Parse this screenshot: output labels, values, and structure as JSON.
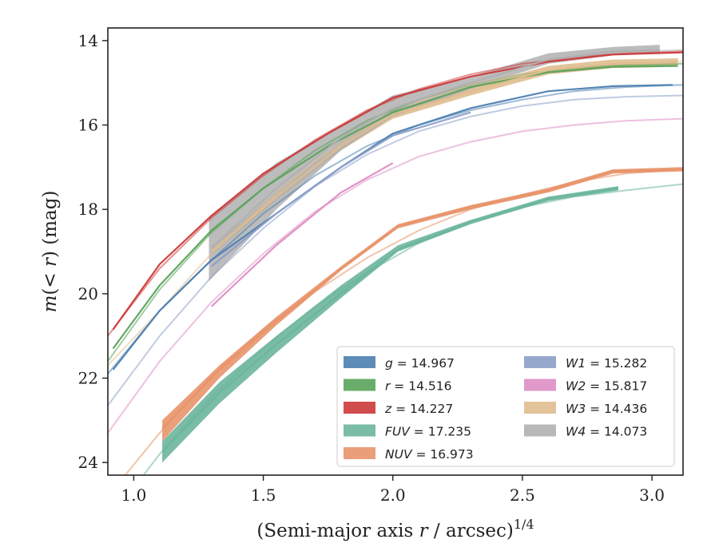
{
  "chart_data": {
    "type": "line",
    "xlabel": "(Semi-major axis r / arcsec)^1/4",
    "ylabel": "m(<r) (mag)",
    "xlim": [
      0.9,
      3.12
    ],
    "ylim": [
      24.3,
      13.7
    ],
    "y_inverted": true,
    "x_ticks": [
      "1.0",
      "1.5",
      "2.0",
      "2.5",
      "3.0"
    ],
    "x_tick_values": [
      1.0,
      1.5,
      2.0,
      2.5,
      3.0
    ],
    "y_ticks": [
      "14",
      "16",
      "18",
      "20",
      "22",
      "24"
    ],
    "y_tick_values": [
      14,
      16,
      18,
      20,
      22,
      24
    ],
    "grid": false,
    "legend_position": "lower-right",
    "series": [
      {
        "name": "g = 14.967",
        "band": "g",
        "value": "14.967",
        "color": "#4c7fb0",
        "faint": [
          [
            0.9,
            21.9
          ],
          [
            1.1,
            20.4
          ],
          [
            1.3,
            19.2
          ],
          [
            1.5,
            18.1
          ],
          [
            1.7,
            17.2
          ],
          [
            1.9,
            16.5
          ],
          [
            2.1,
            16.0
          ],
          [
            2.3,
            15.65
          ],
          [
            2.5,
            15.4
          ],
          [
            2.7,
            15.2
          ],
          [
            2.9,
            15.1
          ],
          [
            3.12,
            15.05
          ]
        ],
        "main": [
          [
            0.92,
            21.8
          ],
          [
            1.1,
            20.4
          ],
          [
            1.3,
            19.2
          ],
          [
            1.55,
            18.1
          ],
          [
            1.8,
            17.0
          ],
          [
            2.0,
            16.2
          ],
          [
            2.3,
            15.6
          ],
          [
            2.6,
            15.2
          ],
          [
            2.85,
            15.08
          ],
          [
            3.08,
            15.05
          ]
        ],
        "band_pts": []
      },
      {
        "name": "r = 14.516",
        "band": "r",
        "value": "14.516",
        "color": "#5aa35a",
        "faint": [
          [
            0.9,
            21.6
          ],
          [
            1.1,
            19.9
          ],
          [
            1.3,
            18.55
          ],
          [
            1.5,
            17.5
          ],
          [
            1.7,
            16.6
          ],
          [
            1.9,
            15.9
          ],
          [
            2.1,
            15.4
          ],
          [
            2.3,
            15.05
          ],
          [
            2.5,
            14.8
          ],
          [
            2.7,
            14.65
          ],
          [
            2.9,
            14.58
          ],
          [
            3.12,
            14.55
          ]
        ],
        "main": [
          [
            0.92,
            21.3
          ],
          [
            1.1,
            19.8
          ],
          [
            1.3,
            18.5
          ],
          [
            1.5,
            17.5
          ],
          [
            1.75,
            16.5
          ],
          [
            2.0,
            15.7
          ],
          [
            2.3,
            15.1
          ],
          [
            2.6,
            14.75
          ],
          [
            2.85,
            14.62
          ],
          [
            3.1,
            14.6
          ]
        ],
        "band_pts": []
      },
      {
        "name": "z = 14.227",
        "band": "z",
        "value": "14.227",
        "color": "#cc3a3a",
        "faint": [
          [
            0.9,
            21.0
          ],
          [
            1.1,
            19.4
          ],
          [
            1.3,
            18.2
          ],
          [
            1.5,
            17.2
          ],
          [
            1.7,
            16.35
          ],
          [
            1.9,
            15.65
          ],
          [
            2.1,
            15.15
          ],
          [
            2.3,
            14.8
          ],
          [
            2.5,
            14.55
          ],
          [
            2.7,
            14.4
          ],
          [
            2.9,
            14.3
          ],
          [
            3.12,
            14.25
          ]
        ],
        "main": [
          [
            0.92,
            20.85
          ],
          [
            1.1,
            19.3
          ],
          [
            1.3,
            18.15
          ],
          [
            1.5,
            17.15
          ],
          [
            1.75,
            16.2
          ],
          [
            2.0,
            15.35
          ],
          [
            2.3,
            14.85
          ],
          [
            2.6,
            14.5
          ],
          [
            2.85,
            14.33
          ],
          [
            3.12,
            14.28
          ]
        ],
        "band_pts": []
      },
      {
        "name": "FUV = 17.235",
        "band": "FUV",
        "value": "17.235",
        "color": "#6bb59c",
        "faint": [
          [
            0.9,
            25.4
          ],
          [
            1.1,
            23.8
          ],
          [
            1.3,
            22.45
          ],
          [
            1.5,
            21.3
          ],
          [
            1.7,
            20.3
          ],
          [
            1.9,
            19.5
          ],
          [
            2.1,
            18.8
          ],
          [
            2.3,
            18.3
          ],
          [
            2.5,
            17.95
          ],
          [
            2.7,
            17.7
          ],
          [
            2.9,
            17.55
          ],
          [
            3.12,
            17.4
          ]
        ],
        "main": [
          [
            1.11,
            23.75
          ],
          [
            1.33,
            22.35
          ],
          [
            1.55,
            21.2
          ],
          [
            1.8,
            20.0
          ],
          [
            2.02,
            18.95
          ],
          [
            2.3,
            18.3
          ],
          [
            2.6,
            17.75
          ],
          [
            2.87,
            17.5
          ]
        ],
        "band_pts": [
          [
            1.11,
            23.5,
            24.0
          ],
          [
            1.33,
            22.1,
            22.6
          ],
          [
            1.55,
            21.0,
            21.4
          ],
          [
            1.8,
            19.8,
            20.1
          ],
          [
            2.02,
            18.85,
            19.0
          ],
          [
            2.3,
            18.25,
            18.35
          ],
          [
            2.6,
            17.7,
            17.8
          ],
          [
            2.87,
            17.45,
            17.55
          ]
        ]
      },
      {
        "name": "NUV = 16.973",
        "band": "NUV",
        "value": "16.973",
        "color": "#e8936a",
        "faint": [
          [
            0.9,
            24.8
          ],
          [
            1.1,
            23.3
          ],
          [
            1.3,
            21.95
          ],
          [
            1.5,
            20.85
          ],
          [
            1.7,
            19.95
          ],
          [
            1.9,
            19.15
          ],
          [
            2.1,
            18.5
          ],
          [
            2.3,
            18.0
          ],
          [
            2.5,
            17.65
          ],
          [
            2.7,
            17.35
          ],
          [
            2.9,
            17.15
          ],
          [
            3.12,
            17.05
          ]
        ],
        "main": [
          [
            1.11,
            23.2
          ],
          [
            1.33,
            21.8
          ],
          [
            1.55,
            20.65
          ],
          [
            1.8,
            19.4
          ],
          [
            2.02,
            18.4
          ],
          [
            2.3,
            17.95
          ],
          [
            2.6,
            17.55
          ],
          [
            2.85,
            17.1
          ],
          [
            3.12,
            17.05
          ]
        ],
        "band_pts": [
          [
            1.11,
            23.0,
            23.5
          ],
          [
            1.33,
            21.7,
            22.0
          ],
          [
            1.55,
            20.55,
            20.75
          ],
          [
            1.8,
            19.35,
            19.45
          ],
          [
            2.02,
            18.35,
            18.45
          ],
          [
            2.3,
            17.9,
            18.0
          ],
          [
            2.6,
            17.5,
            17.6
          ],
          [
            2.85,
            17.05,
            17.15
          ],
          [
            3.12,
            17.0,
            17.1
          ]
        ]
      },
      {
        "name": "W1 = 15.282",
        "band": "W1",
        "value": "15.282",
        "color": "#8c9fc8",
        "faint": [
          [
            0.9,
            22.65
          ],
          [
            1.1,
            21.0
          ],
          [
            1.3,
            19.6
          ],
          [
            1.5,
            18.45
          ],
          [
            1.7,
            17.45
          ],
          [
            1.9,
            16.7
          ],
          [
            2.1,
            16.15
          ],
          [
            2.3,
            15.8
          ],
          [
            2.5,
            15.55
          ],
          [
            2.7,
            15.4
          ],
          [
            2.9,
            15.33
          ],
          [
            3.12,
            15.3
          ]
        ],
        "main": [
          [
            1.3,
            19.35
          ],
          [
            1.55,
            18.1
          ],
          [
            1.8,
            17.0
          ],
          [
            2.0,
            16.25
          ],
          [
            2.3,
            15.7
          ]
        ],
        "band_pts": []
      },
      {
        "name": "W2 = 15.817",
        "band": "W2",
        "value": "15.817",
        "color": "#dd8ec4",
        "faint": [
          [
            0.9,
            23.3
          ],
          [
            1.1,
            21.6
          ],
          [
            1.3,
            20.2
          ],
          [
            1.5,
            19.05
          ],
          [
            1.7,
            18.05
          ],
          [
            1.9,
            17.3
          ],
          [
            2.1,
            16.75
          ],
          [
            2.3,
            16.4
          ],
          [
            2.5,
            16.15
          ],
          [
            2.7,
            16.0
          ],
          [
            2.9,
            15.9
          ],
          [
            3.12,
            15.85
          ]
        ],
        "main": [
          [
            1.3,
            20.3
          ],
          [
            1.55,
            18.85
          ],
          [
            1.8,
            17.6
          ],
          [
            2.0,
            16.9
          ]
        ],
        "band_pts": []
      },
      {
        "name": "W3 = 14.436",
        "band": "W3",
        "value": "14.436",
        "color": "#e0bd8f",
        "faint": [
          [
            0.9,
            21.7
          ],
          [
            1.1,
            20.4
          ],
          [
            1.3,
            19.05
          ],
          [
            1.5,
            17.9
          ],
          [
            1.7,
            16.85
          ],
          [
            1.9,
            16.05
          ],
          [
            2.1,
            15.45
          ],
          [
            2.3,
            15.05
          ],
          [
            2.5,
            14.8
          ],
          [
            2.7,
            14.62
          ],
          [
            2.9,
            14.52
          ],
          [
            3.12,
            14.5
          ]
        ],
        "main": [
          [
            1.3,
            19.0
          ],
          [
            1.55,
            17.7
          ],
          [
            1.8,
            16.5
          ],
          [
            2.0,
            15.75
          ],
          [
            2.3,
            15.2
          ],
          [
            2.6,
            14.7
          ],
          [
            2.85,
            14.55
          ],
          [
            3.1,
            14.52
          ]
        ],
        "band_pts": [
          [
            1.3,
            18.9,
            19.1
          ],
          [
            1.55,
            17.6,
            17.8
          ],
          [
            1.8,
            16.4,
            16.6
          ],
          [
            2.0,
            15.65,
            15.85
          ],
          [
            2.3,
            15.1,
            15.3
          ],
          [
            2.6,
            14.6,
            14.8
          ],
          [
            2.85,
            14.45,
            14.65
          ],
          [
            3.1,
            14.42,
            14.62
          ]
        ]
      },
      {
        "name": "W4 = 14.073",
        "band": "W4",
        "value": "14.073",
        "color": "#b0b0b0",
        "faint": [
          [
            2.6,
            14.5
          ],
          [
            2.8,
            14.3
          ],
          [
            3.0,
            14.25
          ],
          [
            3.12,
            14.22
          ]
        ],
        "main": [
          [
            1.3,
            18.9
          ],
          [
            1.55,
            17.5
          ],
          [
            1.8,
            16.3
          ],
          [
            2.0,
            15.6
          ],
          [
            2.3,
            15.0
          ],
          [
            2.6,
            14.45
          ],
          [
            2.85,
            14.25
          ],
          [
            3.03,
            14.22
          ]
        ],
        "band_pts": [
          [
            1.29,
            18.2,
            19.7
          ],
          [
            1.55,
            16.9,
            18.0
          ],
          [
            1.8,
            16.0,
            16.6
          ],
          [
            2.0,
            15.3,
            15.8
          ],
          [
            2.3,
            14.85,
            15.15
          ],
          [
            2.6,
            14.3,
            14.55
          ],
          [
            2.85,
            14.15,
            14.35
          ],
          [
            3.03,
            14.1,
            14.3
          ]
        ]
      }
    ]
  }
}
